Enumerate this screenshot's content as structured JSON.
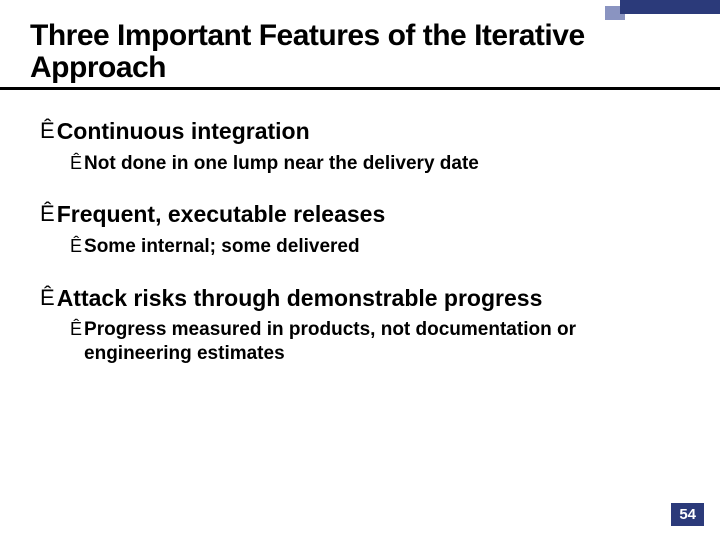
{
  "colors": {
    "text": "#000000",
    "rule": "#000000",
    "accent_dark": "#2b3a7a",
    "accent_light": "#8a94c1",
    "page_num_bg": "#2b3a7a",
    "page_num_fg": "#ffffff",
    "background": "#ffffff"
  },
  "glyphs": {
    "arrow": "Ê"
  },
  "title": "Three Important Features of the Iterative Approach",
  "bullets": [
    {
      "text": "Continuous integration",
      "sub": [
        {
          "text": "Not done in one lump near the delivery date"
        }
      ]
    },
    {
      "text": "Frequent, executable releases",
      "sub": [
        {
          "text": "Some internal; some delivered"
        }
      ]
    },
    {
      "text": "Attack risks through demonstrable progress",
      "sub": [
        {
          "text": "Progress measured in products, not documentation or engineering estimates"
        }
      ]
    }
  ],
  "page_number": "54"
}
